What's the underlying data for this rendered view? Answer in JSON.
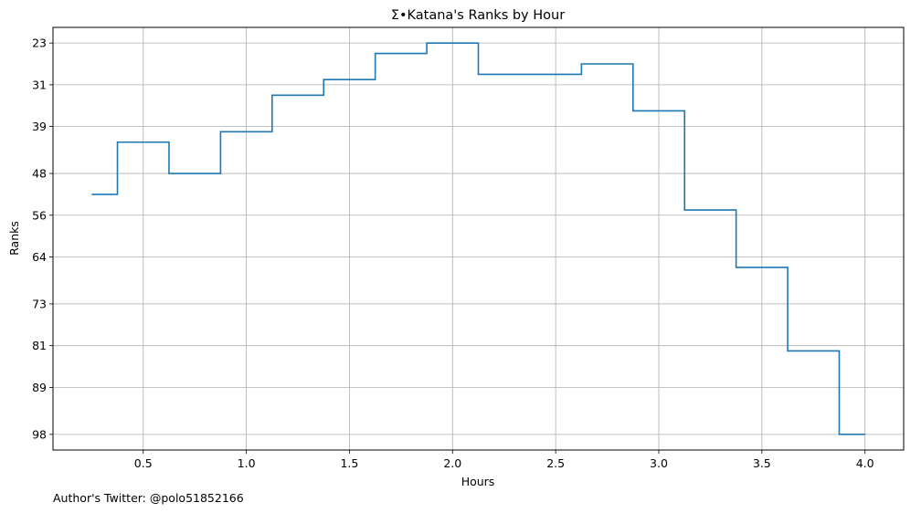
{
  "chart_data": {
    "type": "line",
    "style": "step",
    "title": "Σ•Katana's Ranks by Hour",
    "xlabel": "Hours",
    "ylabel": "Ranks",
    "xlim": [
      0.0625,
      4.1875
    ],
    "ylim": [
      101,
      20
    ],
    "y_inverted": true,
    "grid": true,
    "x_ticks": [
      0.5,
      1.0,
      1.5,
      2.0,
      2.5,
      3.0,
      3.5,
      4.0
    ],
    "x_tick_labels": [
      "0.5",
      "1.0",
      "1.5",
      "2.0",
      "2.5",
      "3.0",
      "3.5",
      "4.0"
    ],
    "y_ticks": [
      23,
      31,
      39,
      48,
      56,
      64,
      73,
      81,
      89,
      98
    ],
    "y_tick_labels": [
      "23",
      "31",
      "39",
      "48",
      "56",
      "64",
      "73",
      "81",
      "89",
      "98"
    ],
    "series": [
      {
        "color": "#1f77b4",
        "x": [
          0.25,
          0.5,
          0.75,
          1.0,
          1.25,
          1.5,
          1.75,
          2.0,
          2.25,
          2.5,
          2.75,
          3.0,
          3.25,
          3.5,
          3.75,
          4.0
        ],
        "y": [
          52,
          42,
          48,
          40,
          33,
          30,
          25,
          23,
          29,
          29,
          27,
          36,
          55,
          66,
          82,
          98
        ]
      }
    ]
  },
  "footer": {
    "text": "Author's Twitter: @polo51852166"
  }
}
